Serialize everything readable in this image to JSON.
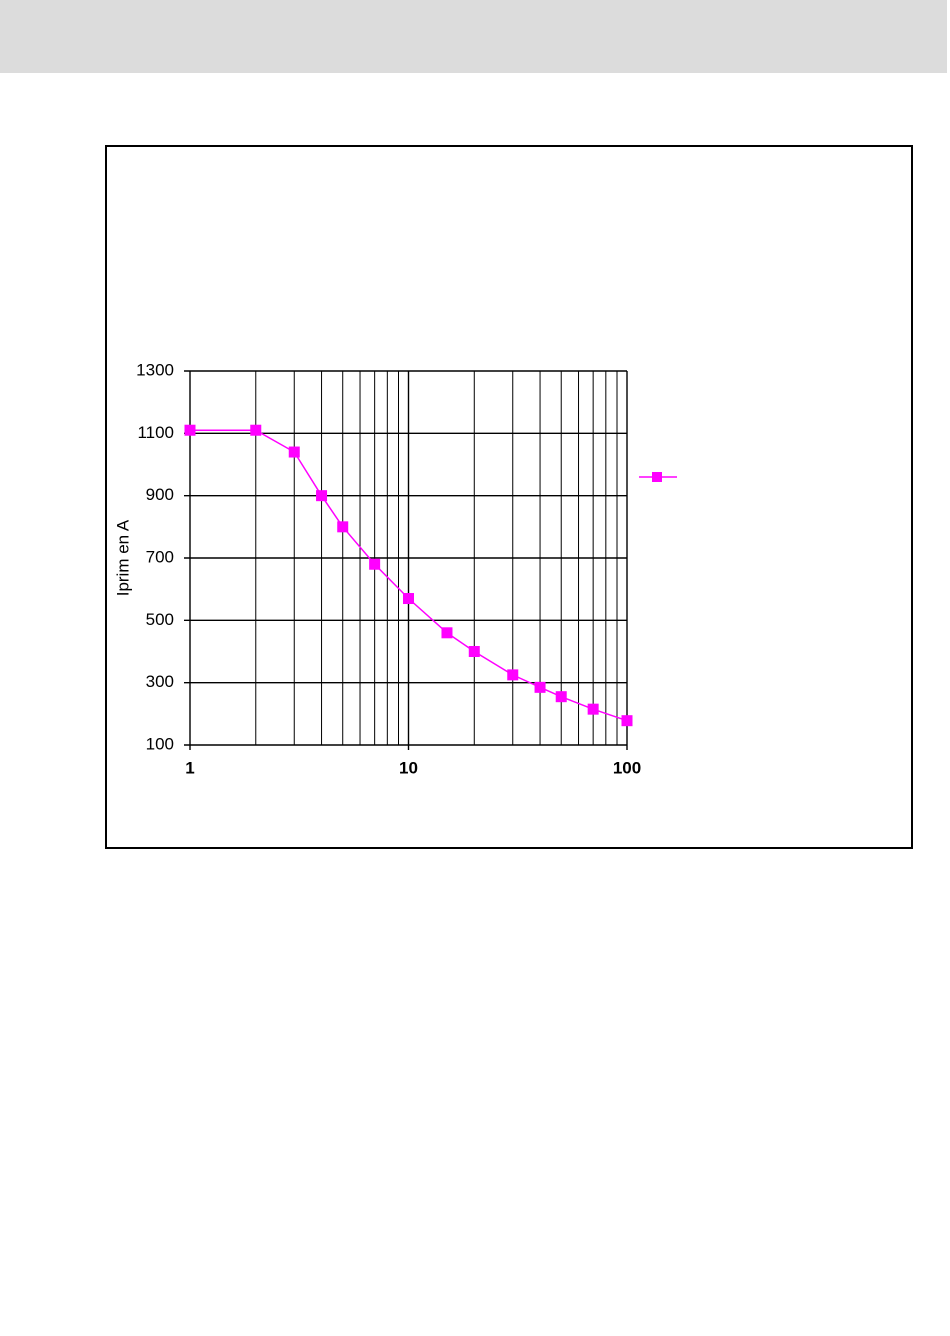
{
  "chart_data": {
    "type": "line",
    "y_label": "Iprim en A",
    "x": [
      1,
      2,
      3,
      4,
      5,
      7,
      10,
      15,
      20,
      30,
      40,
      50,
      70,
      100
    ],
    "series": [
      {
        "color": "#ff00ff",
        "values": [
          1110,
          1110,
          1040,
          900,
          800,
          680,
          570,
          460,
          400,
          325,
          285,
          255,
          215,
          178
        ]
      }
    ],
    "xlim": [
      1,
      100
    ],
    "xticks": [
      1,
      10,
      100
    ],
    "xminorticks": [
      2,
      3,
      4,
      5,
      6,
      7,
      8,
      9,
      20,
      30,
      40,
      50,
      60,
      70,
      80,
      90
    ],
    "xscale": "log",
    "ylim": [
      100,
      1300
    ],
    "yticks": [
      100,
      300,
      500,
      700,
      900,
      1100,
      1300
    ],
    "grid": true
  }
}
